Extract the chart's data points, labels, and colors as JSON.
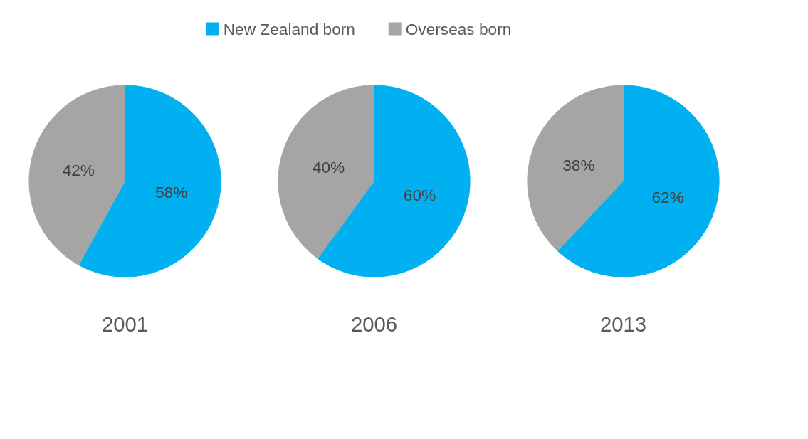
{
  "chart_data": [
    {
      "type": "pie",
      "title": "2001",
      "categories": [
        "New Zealand born",
        "Overseas born"
      ],
      "values": [
        58,
        42
      ],
      "value_labels": [
        "58%",
        "42%"
      ],
      "colors": [
        "#00b0f0",
        "#a5a5a5"
      ],
      "legend": "top"
    },
    {
      "type": "pie",
      "title": "2006",
      "values": [
        60,
        40
      ],
      "value_labels": [
        "60%",
        "40%"
      ],
      "colors": [
        "#00b0f0",
        "#a5a5a5"
      ]
    },
    {
      "type": "pie",
      "title": "2013",
      "values": [
        62,
        38
      ],
      "value_labels": [
        "62%",
        "38%"
      ],
      "colors": [
        "#00b0f0",
        "#a5a5a5"
      ]
    }
  ]
}
